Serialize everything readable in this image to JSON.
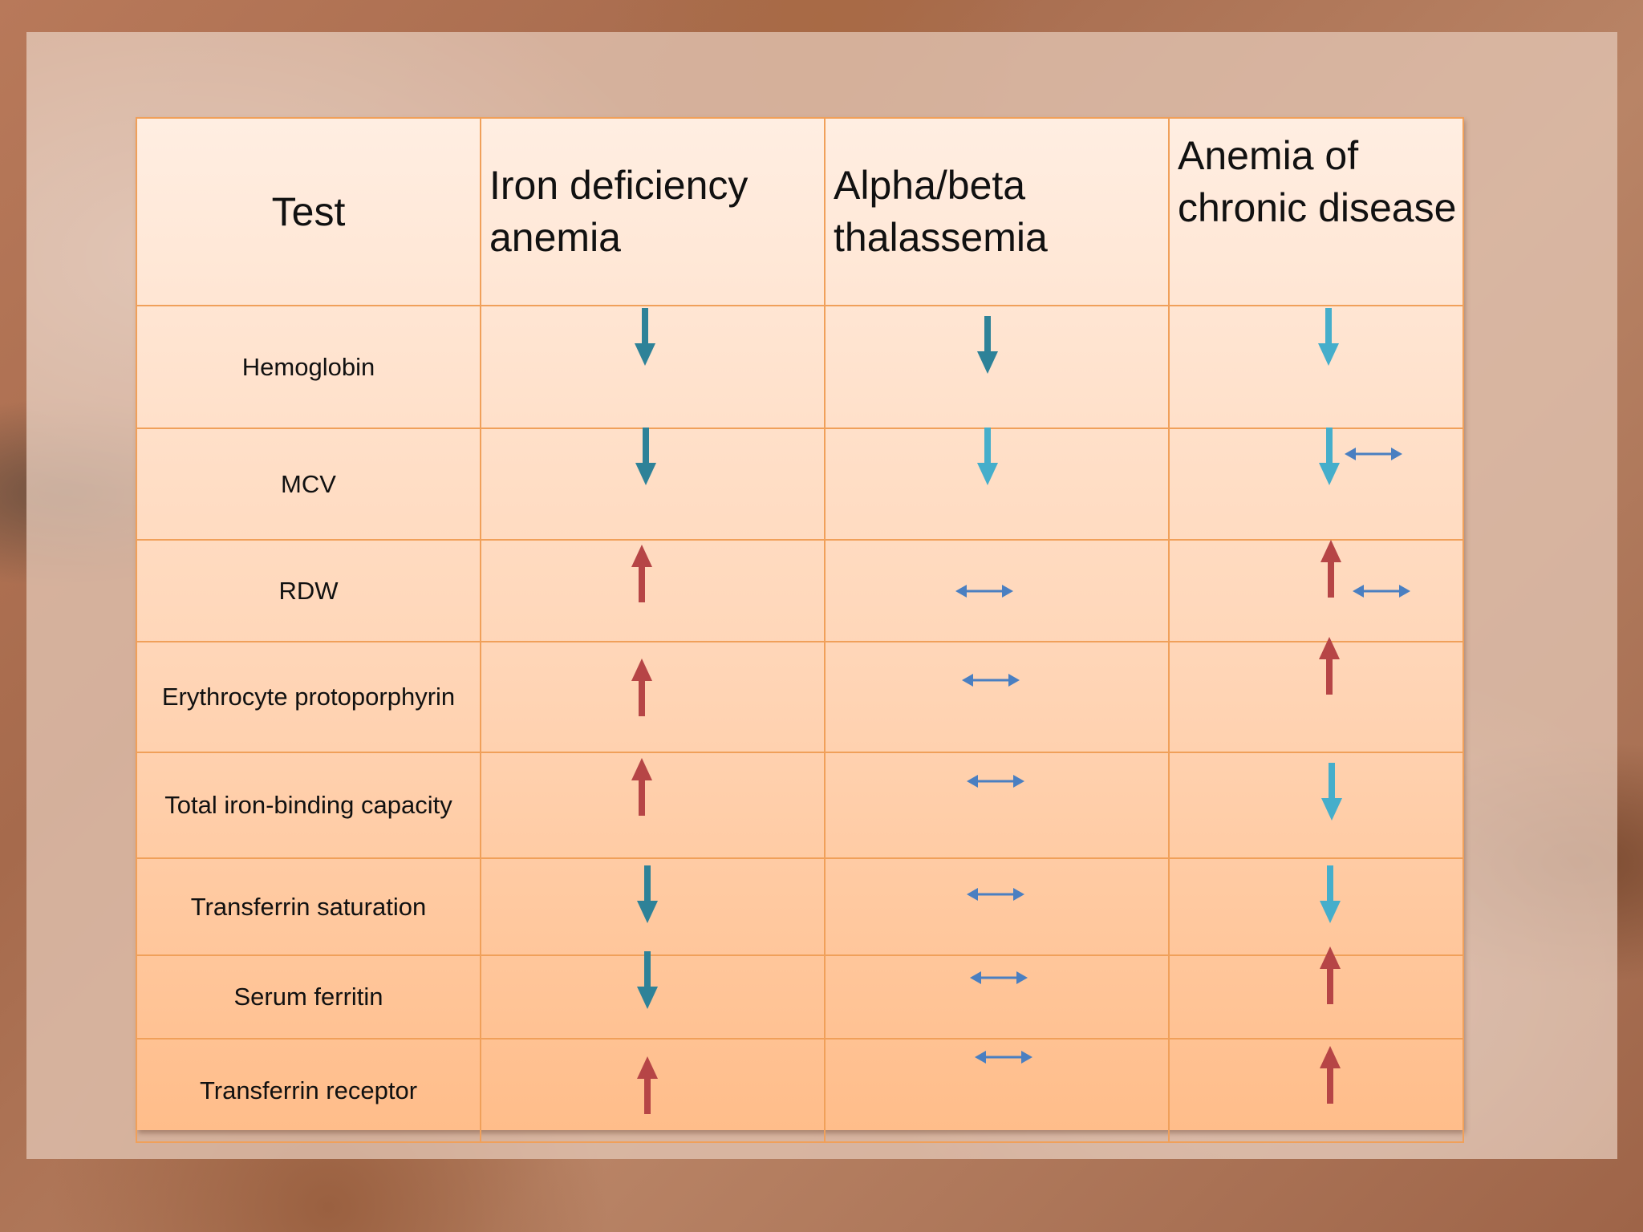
{
  "headers": {
    "test": "Test",
    "iron_deficiency": "Iron deficiency anemia",
    "thalassemia": "Alpha/beta thalassemia",
    "chronic_disease": "Anemia of chronic disease"
  },
  "rows": [
    {
      "test": "Hemoglobin",
      "iron_deficiency": "decreased",
      "thalassemia": "decreased",
      "chronic_disease": "decreased"
    },
    {
      "test": "MCV",
      "iron_deficiency": "decreased",
      "thalassemia": "decreased",
      "chronic_disease": "decreased or normal"
    },
    {
      "test": "RDW",
      "iron_deficiency": "increased",
      "thalassemia": "normal",
      "chronic_disease": "increased or normal"
    },
    {
      "test": "Erythrocyte protoporphyrin",
      "iron_deficiency": "increased",
      "thalassemia": "normal",
      "chronic_disease": "increased"
    },
    {
      "test": "Total iron-binding capacity",
      "iron_deficiency": "increased",
      "thalassemia": "normal",
      "chronic_disease": "decreased"
    },
    {
      "test": "Transferrin saturation",
      "iron_deficiency": "decreased",
      "thalassemia": "normal",
      "chronic_disease": "decreased"
    },
    {
      "test": "Serum ferritin",
      "iron_deficiency": "decreased",
      "thalassemia": "normal",
      "chronic_disease": "increased"
    },
    {
      "test": "Transferrin receptor",
      "iron_deficiency": "increased",
      "thalassemia": "normal",
      "chronic_disease": "increased"
    }
  ],
  "colors": {
    "down_dark": "#2e8298",
    "down_light": "#45aecb",
    "up": "#b64546",
    "normal": "#4a7fc1",
    "border": "#f0a05a"
  },
  "icons": {
    "decreased": "down-arrow-icon",
    "increased": "up-arrow-icon",
    "normal": "double-arrow-icon"
  }
}
